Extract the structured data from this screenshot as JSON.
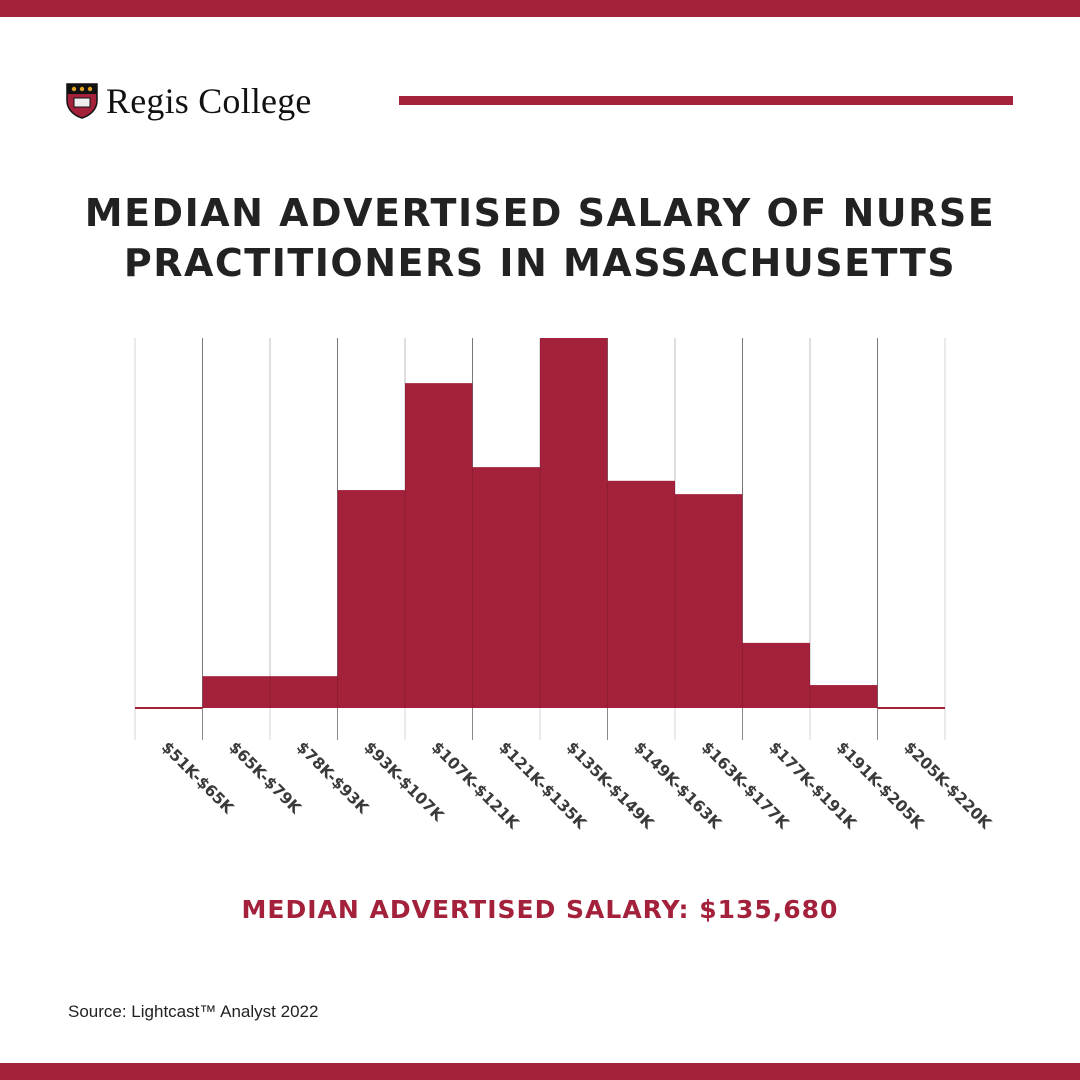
{
  "brand": {
    "name": "Regis College",
    "accent": "#a3213a"
  },
  "title_line1": "MEDIAN ADVERTISED SALARY OF NURSE",
  "title_line2": "PRACTITIONERS IN MASSACHUSETTS",
  "median_text": "MEDIAN ADVERTISED SALARY: $135,680",
  "source": "Source: Lightcast™ Analyst 2022",
  "chart_data": {
    "type": "bar",
    "title": "MEDIAN ADVERTISED SALARY OF NURSE PRACTITIONERS IN MASSACHUSETTS",
    "xlabel": "",
    "ylabel": "",
    "y_axis_shown": false,
    "value_scale": "relative (tallest bin = 100)",
    "categories": [
      "$51K-$65K",
      "$65K-$79K",
      "$78K-$93K",
      "$93K-$107K",
      "$107K-$121K",
      "$121K-$135K",
      "$135K-$149K",
      "$149K-$163K",
      "$163K-$177K",
      "$177K-$191K",
      "$191K-$205K",
      "$205K-$220K"
    ],
    "values": [
      0,
      8.6,
      8.6,
      58.9,
      87.8,
      65.1,
      100,
      61.4,
      57.8,
      17.6,
      6.2,
      0
    ],
    "ylim": [
      0,
      100
    ],
    "grid": "vertical",
    "color": "#a3213a"
  }
}
